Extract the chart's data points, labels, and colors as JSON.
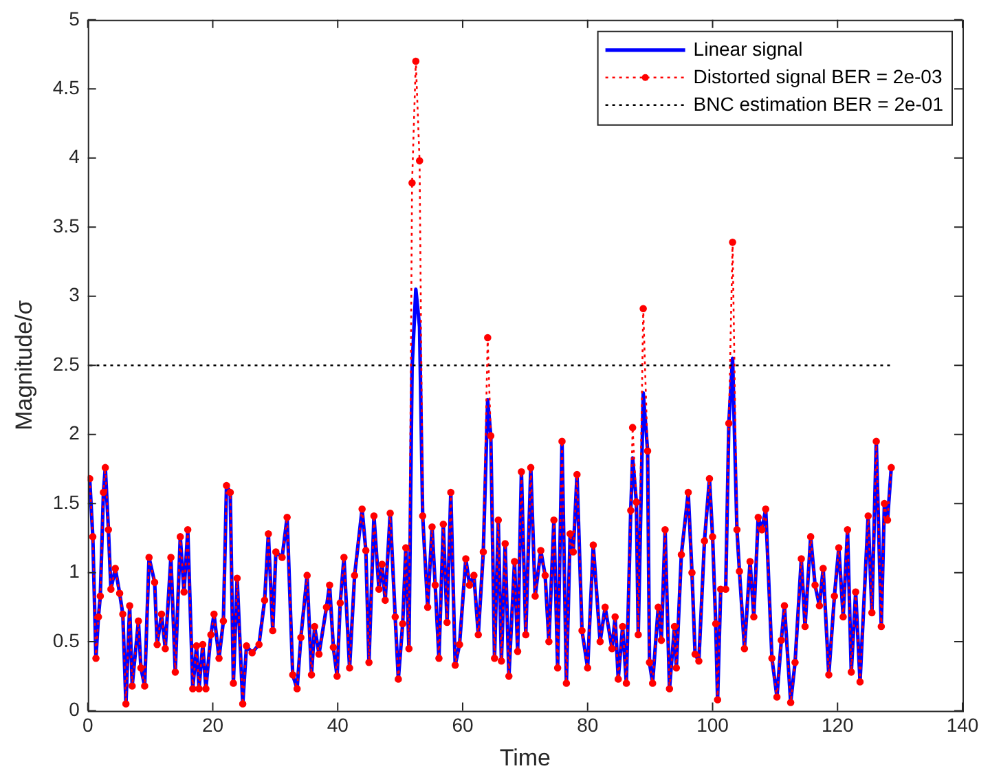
{
  "chart_data": {
    "type": "line",
    "xlabel": "Time",
    "ylabel": "Magnitude/σ",
    "xlim": [
      0,
      140
    ],
    "xticks": [
      0,
      20,
      40,
      60,
      80,
      100,
      120,
      140
    ],
    "ylim": [
      0,
      5
    ],
    "yticks": [
      0,
      0.5,
      1,
      1.5,
      2,
      2.5,
      3,
      3.5,
      4,
      4.5,
      5
    ],
    "grid": false,
    "legend": "top right",
    "x": [
      0.3,
      0.8,
      1.3,
      1.7,
      2.0,
      2.5,
      2.8,
      3.3,
      3.7,
      4.4,
      5.1,
      5.6,
      6.1,
      6.7,
      7.1,
      8.1,
      8.5,
      9.1,
      9.8,
      10.7,
      11.1,
      11.8,
      12.4,
      13.3,
      14.0,
      14.8,
      15.4,
      16.0,
      16.8,
      17.4,
      17.8,
      18.4,
      18.9,
      19.7,
      20.2,
      21.0,
      21.7,
      22.2,
      22.8,
      23.3,
      23.9,
      24.8,
      25.4,
      26.3,
      27.4,
      28.3,
      28.9,
      29.6,
      30.1,
      31.1,
      31.9,
      32.8,
      33.5,
      34.1,
      35.1,
      35.8,
      36.3,
      37.0,
      38.2,
      38.7,
      39.3,
      39.9,
      40.4,
      41.0,
      41.9,
      42.7,
      43.9,
      44.5,
      45.0,
      45.8,
      46.6,
      47.1,
      47.6,
      48.4,
      49.2,
      49.7,
      50.4,
      50.9,
      51.4,
      51.9,
      52.5,
      53.1,
      53.6,
      54.4,
      55.1,
      55.6,
      56.2,
      56.9,
      57.5,
      58.1,
      58.8,
      59.5,
      60.5,
      61.1,
      61.8,
      62.5,
      63.3,
      64.0,
      64.5,
      65.1,
      65.7,
      66.2,
      66.8,
      67.4,
      68.3,
      68.8,
      69.4,
      70.1,
      70.9,
      71.6,
      72.5,
      73.2,
      73.8,
      74.6,
      75.2,
      75.9,
      76.6,
      77.2,
      77.7,
      78.3,
      79.1,
      80.0,
      80.9,
      82.0,
      82.8,
      83.9,
      84.4,
      84.9,
      85.6,
      86.2,
      86.9,
      87.2,
      87.8,
      88.1,
      88.9,
      89.6,
      89.9,
      90.4,
      91.3,
      91.8,
      92.4,
      93.1,
      93.9,
      94.2,
      95.0,
      96.1,
      96.7,
      97.2,
      97.8,
      98.7,
      99.5,
      100.0,
      100.5,
      100.8,
      101.3,
      102.1,
      102.6,
      103.2,
      103.9,
      104.3,
      105.1,
      106.0,
      106.6,
      107.3,
      107.9,
      108.5,
      109.5,
      110.3,
      111.0,
      111.5,
      112.5,
      113.2,
      114.2,
      114.8,
      115.7,
      116.4,
      117.1,
      117.7,
      118.6,
      119.5,
      120.2,
      120.9,
      121.6,
      122.2,
      122.9,
      123.6,
      124.9,
      125.5,
      126.2,
      127.0,
      127.5,
      128.0,
      128.6
    ],
    "series": [
      {
        "name": "Linear signal",
        "color": "#0000ff",
        "line_style": "solid",
        "marker": "none",
        "values": [
          1.68,
          1.26,
          0.38,
          0.68,
          0.83,
          1.58,
          1.76,
          1.31,
          0.88,
          1.03,
          0.85,
          0.7,
          0.05,
          0.76,
          0.18,
          0.65,
          0.31,
          0.18,
          1.11,
          0.93,
          0.48,
          0.7,
          0.45,
          1.11,
          0.28,
          1.26,
          0.86,
          1.31,
          0.16,
          0.47,
          0.16,
          0.48,
          0.16,
          0.55,
          0.7,
          0.38,
          0.65,
          1.63,
          1.58,
          0.2,
          0.96,
          0.05,
          0.47,
          0.42,
          0.48,
          0.8,
          1.28,
          0.58,
          1.15,
          1.11,
          1.4,
          0.26,
          0.16,
          0.53,
          0.98,
          0.26,
          0.61,
          0.41,
          0.75,
          0.91,
          0.46,
          0.25,
          0.78,
          1.11,
          0.31,
          0.98,
          1.46,
          1.16,
          0.35,
          1.41,
          0.88,
          1.06,
          0.8,
          1.43,
          0.68,
          0.23,
          0.63,
          1.18,
          0.45,
          2.48,
          3.05,
          2.78,
          1.41,
          0.75,
          1.33,
          0.91,
          0.38,
          1.35,
          0.64,
          1.58,
          0.33,
          0.48,
          1.1,
          0.91,
          0.98,
          0.55,
          1.15,
          2.25,
          1.99,
          0.38,
          1.38,
          0.36,
          1.21,
          0.25,
          1.08,
          0.43,
          1.73,
          0.55,
          1.76,
          0.83,
          1.16,
          0.98,
          0.5,
          1.38,
          0.31,
          1.95,
          0.2,
          1.28,
          1.15,
          1.71,
          0.58,
          0.31,
          1.2,
          0.5,
          0.75,
          0.45,
          0.68,
          0.23,
          0.61,
          0.2,
          1.45,
          1.83,
          1.51,
          0.55,
          2.3,
          1.88,
          0.35,
          0.2,
          0.75,
          0.51,
          1.31,
          0.16,
          0.61,
          0.31,
          1.13,
          1.58,
          1.0,
          0.41,
          0.36,
          1.23,
          1.68,
          1.26,
          0.63,
          0.08,
          0.88,
          0.88,
          2.08,
          2.55,
          1.31,
          1.01,
          0.45,
          1.08,
          0.68,
          1.4,
          1.31,
          1.46,
          0.38,
          0.1,
          0.51,
          0.76,
          0.06,
          0.35,
          1.1,
          0.61,
          1.26,
          0.91,
          0.76,
          1.03,
          0.26,
          0.83,
          1.18,
          0.68,
          1.31,
          0.28,
          0.86,
          0.21,
          1.41,
          0.71,
          1.95,
          0.61,
          1.5,
          1.38,
          1.76
        ]
      },
      {
        "name": "Distorted signal BER = 2e-03",
        "color": "#ff0000",
        "line_style": "dotted",
        "marker": "circle",
        "values": [
          1.68,
          1.26,
          0.38,
          0.68,
          0.83,
          1.58,
          1.76,
          1.31,
          0.88,
          1.03,
          0.85,
          0.7,
          0.05,
          0.76,
          0.18,
          0.65,
          0.31,
          0.18,
          1.11,
          0.93,
          0.48,
          0.7,
          0.45,
          1.11,
          0.28,
          1.26,
          0.86,
          1.31,
          0.16,
          0.47,
          0.16,
          0.48,
          0.16,
          0.55,
          0.7,
          0.38,
          0.65,
          1.63,
          1.58,
          0.2,
          0.96,
          0.05,
          0.47,
          0.42,
          0.48,
          0.8,
          1.28,
          0.58,
          1.15,
          1.11,
          1.4,
          0.26,
          0.16,
          0.53,
          0.98,
          0.26,
          0.61,
          0.41,
          0.75,
          0.91,
          0.46,
          0.25,
          0.78,
          1.11,
          0.31,
          0.98,
          1.46,
          1.16,
          0.35,
          1.41,
          0.88,
          1.06,
          0.8,
          1.43,
          0.68,
          0.23,
          0.63,
          1.18,
          0.45,
          3.82,
          4.7,
          3.98,
          1.41,
          0.75,
          1.33,
          0.91,
          0.38,
          1.35,
          0.64,
          1.58,
          0.33,
          0.48,
          1.1,
          0.91,
          0.98,
          0.55,
          1.15,
          2.7,
          1.99,
          0.38,
          1.38,
          0.36,
          1.21,
          0.25,
          1.08,
          0.43,
          1.73,
          0.55,
          1.76,
          0.83,
          1.16,
          0.98,
          0.5,
          1.38,
          0.31,
          1.95,
          0.2,
          1.28,
          1.15,
          1.71,
          0.58,
          0.31,
          1.2,
          0.5,
          0.75,
          0.45,
          0.68,
          0.23,
          0.61,
          0.2,
          1.45,
          2.05,
          1.51,
          0.55,
          2.91,
          1.88,
          0.35,
          0.2,
          0.75,
          0.51,
          1.31,
          0.16,
          0.61,
          0.31,
          1.13,
          1.58,
          1.0,
          0.41,
          0.36,
          1.23,
          1.68,
          1.26,
          0.63,
          0.08,
          0.88,
          0.88,
          2.08,
          3.39,
          1.31,
          1.01,
          0.45,
          1.08,
          0.68,
          1.4,
          1.31,
          1.46,
          0.38,
          0.1,
          0.51,
          0.76,
          0.06,
          0.35,
          1.1,
          0.61,
          1.26,
          0.91,
          0.76,
          1.03,
          0.26,
          0.83,
          1.18,
          0.68,
          1.31,
          0.28,
          0.86,
          0.21,
          1.41,
          0.71,
          1.95,
          0.61,
          1.5,
          1.38,
          1.76
        ]
      }
    ],
    "ref_lines": [
      {
        "axis": "y",
        "value": 2.5,
        "label": "BNC estimation BER = 2e-01",
        "color": "#000000",
        "line_style": "dotted"
      }
    ]
  }
}
